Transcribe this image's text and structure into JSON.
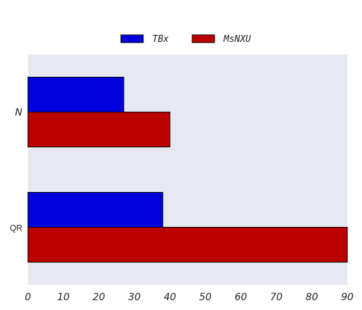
{
  "chart_data": {
    "type": "bar",
    "orientation": "horizontal",
    "categories": [
      "N",
      "QR"
    ],
    "series": [
      {
        "name": "TBx",
        "values": [
          27,
          38
        ],
        "color": "#0000dd"
      },
      {
        "name": "MsNXU",
        "values": [
          40,
          90
        ],
        "color": "#bb0000"
      }
    ],
    "xlim": [
      0,
      90
    ],
    "x_ticks": [
      "0",
      "10",
      "20",
      "30",
      "40",
      "50",
      "60",
      "70",
      "80",
      "90"
    ],
    "xlabel": "",
    "ylabel": "",
    "title": "",
    "legend_position": "top-center",
    "grid": false,
    "plot_background": "#e8e8f2"
  }
}
